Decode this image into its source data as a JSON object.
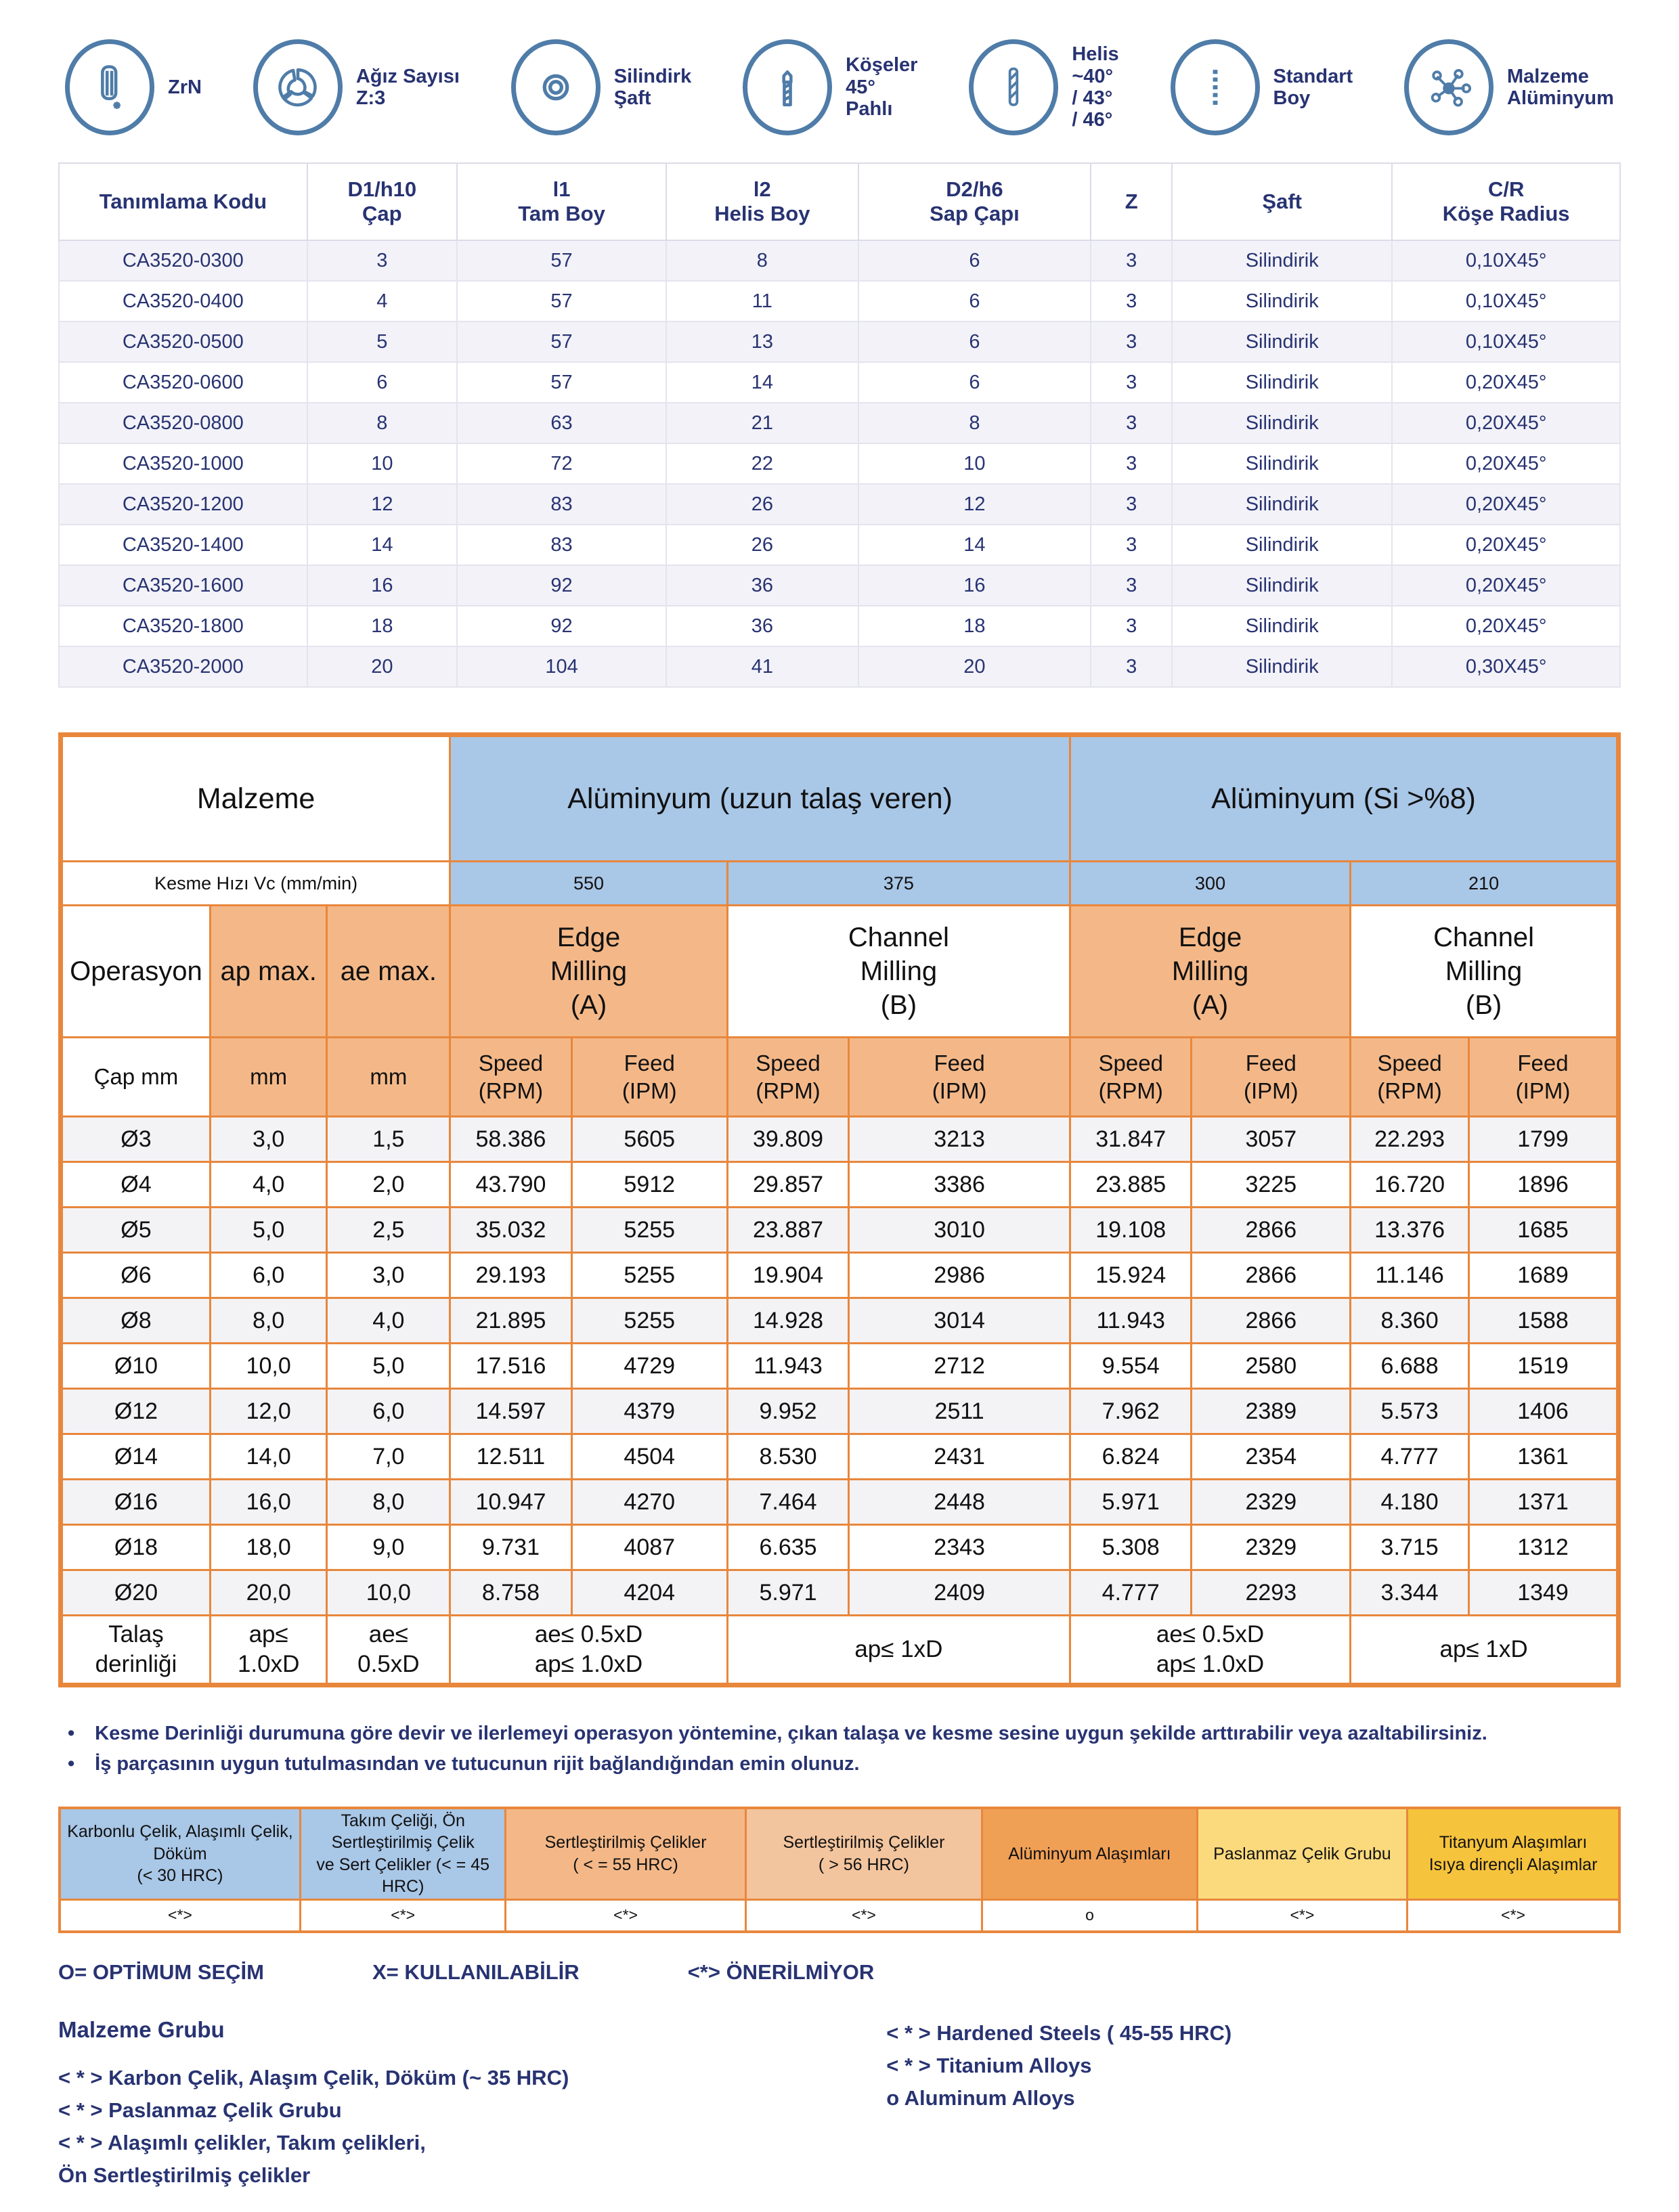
{
  "colors": {
    "navy": "#283372",
    "steel_blue": "#4f7ca8",
    "orange_border": "#e8873c",
    "orange_fill": "#f4b888",
    "blue_fill": "#a9c7e7",
    "alt_row": "#f2f2f8"
  },
  "icons": [
    {
      "label": "ZrN"
    },
    {
      "label": "Ağız Sayısı\nZ:3"
    },
    {
      "label": "Silindirk\nŞaft"
    },
    {
      "label": "Köşeler\n45°\nPahlı"
    },
    {
      "label": "Helis\n~40°\n/ 43°\n/ 46°"
    },
    {
      "label": "Standart\nBoy"
    },
    {
      "label": "Malzeme\nAlüminyum"
    }
  ],
  "spec_table": {
    "columns": [
      "Tanımlama Kodu",
      "D1/h10\nÇap",
      "l1\nTam Boy",
      "l2\nHelis Boy",
      "D2/h6\nSap Çapı",
      "Z",
      "Şaft",
      "C/R\nKöşe Radius"
    ],
    "rows": [
      [
        "CA3520-0300",
        "3",
        "57",
        "8",
        "6",
        "3",
        "Silindirik",
        "0,10X45°"
      ],
      [
        "CA3520-0400",
        "4",
        "57",
        "11",
        "6",
        "3",
        "Silindirik",
        "0,10X45°"
      ],
      [
        "CA3520-0500",
        "5",
        "57",
        "13",
        "6",
        "3",
        "Silindirik",
        "0,10X45°"
      ],
      [
        "CA3520-0600",
        "6",
        "57",
        "14",
        "6",
        "3",
        "Silindirik",
        "0,20X45°"
      ],
      [
        "CA3520-0800",
        "8",
        "63",
        "21",
        "8",
        "3",
        "Silindirik",
        "0,20X45°"
      ],
      [
        "CA3520-1000",
        "10",
        "72",
        "22",
        "10",
        "3",
        "Silindirik",
        "0,20X45°"
      ],
      [
        "CA3520-1200",
        "12",
        "83",
        "26",
        "12",
        "3",
        "Silindirik",
        "0,20X45°"
      ],
      [
        "CA3520-1400",
        "14",
        "83",
        "26",
        "14",
        "3",
        "Silindirik",
        "0,20X45°"
      ],
      [
        "CA3520-1600",
        "16",
        "92",
        "36",
        "16",
        "3",
        "Silindirik",
        "0,20X45°"
      ],
      [
        "CA3520-1800",
        "18",
        "92",
        "36",
        "18",
        "3",
        "Silindirik",
        "0,20X45°"
      ],
      [
        "CA3520-2000",
        "20",
        "104",
        "41",
        "20",
        "3",
        "Silindirik",
        "0,30X45°"
      ]
    ]
  },
  "cut_table": {
    "material_label": "Malzeme",
    "material_groups": [
      "Alüminyum (uzun talaş veren)",
      "Alüminyum (Si >%8)"
    ],
    "cutting_speed_label": "Kesme Hızı Vc (mm/min)",
    "cutting_speeds": [
      "550",
      "375",
      "300",
      "210"
    ],
    "operation_label": "Operasyon",
    "ap_label": "ap max.",
    "ae_label": "ae max.",
    "operations": [
      "Edge\nMilling\n(A)",
      "Channel\nMilling\n(B)",
      "Edge\nMilling\n(A)",
      "Channel\nMilling\n(B)"
    ],
    "dia_label": "Çap mm",
    "mm_label": "mm",
    "speed_label": "Speed\n(RPM)",
    "feed_label": "Feed\n(IPM)",
    "rows": [
      {
        "dia": "Ø3",
        "ap": "3,0",
        "ae": "1,5",
        "values": [
          "58.386",
          "5605",
          "39.809",
          "3213",
          "31.847",
          "3057",
          "22.293",
          "1799"
        ]
      },
      {
        "dia": "Ø4",
        "ap": "4,0",
        "ae": "2,0",
        "values": [
          "43.790",
          "5912",
          "29.857",
          "3386",
          "23.885",
          "3225",
          "16.720",
          "1896"
        ]
      },
      {
        "dia": "Ø5",
        "ap": "5,0",
        "ae": "2,5",
        "values": [
          "35.032",
          "5255",
          "23.887",
          "3010",
          "19.108",
          "2866",
          "13.376",
          "1685"
        ]
      },
      {
        "dia": "Ø6",
        "ap": "6,0",
        "ae": "3,0",
        "values": [
          "29.193",
          "5255",
          "19.904",
          "2986",
          "15.924",
          "2866",
          "11.146",
          "1689"
        ]
      },
      {
        "dia": "Ø8",
        "ap": "8,0",
        "ae": "4,0",
        "values": [
          "21.895",
          "5255",
          "14.928",
          "3014",
          "11.943",
          "2866",
          "8.360",
          "1588"
        ]
      },
      {
        "dia": "Ø10",
        "ap": "10,0",
        "ae": "5,0",
        "values": [
          "17.516",
          "4729",
          "11.943",
          "2712",
          "9.554",
          "2580",
          "6.688",
          "1519"
        ]
      },
      {
        "dia": "Ø12",
        "ap": "12,0",
        "ae": "6,0",
        "values": [
          "14.597",
          "4379",
          "9.952",
          "2511",
          "7.962",
          "2389",
          "5.573",
          "1406"
        ]
      },
      {
        "dia": "Ø14",
        "ap": "14,0",
        "ae": "7,0",
        "values": [
          "12.511",
          "4504",
          "8.530",
          "2431",
          "6.824",
          "2354",
          "4.777",
          "1361"
        ]
      },
      {
        "dia": "Ø16",
        "ap": "16,0",
        "ae": "8,0",
        "values": [
          "10.947",
          "4270",
          "7.464",
          "2448",
          "5.971",
          "2329",
          "4.180",
          "1371"
        ]
      },
      {
        "dia": "Ø18",
        "ap": "18,0",
        "ae": "9,0",
        "values": [
          "9.731",
          "4087",
          "6.635",
          "2343",
          "5.308",
          "2329",
          "3.715",
          "1312"
        ]
      },
      {
        "dia": "Ø20",
        "ap": "20,0",
        "ae": "10,0",
        "values": [
          "8.758",
          "4204",
          "5.971",
          "2409",
          "4.777",
          "2293",
          "3.344",
          "1349"
        ]
      }
    ],
    "depth_row": {
      "label": "Talaş\nderinliği",
      "ap": "ap≤\n1.0xD",
      "ae": "ae≤\n0.5xD",
      "spans": [
        "ae≤ 0.5xD\nap≤ 1.0xD",
        "ap≤ 1xD",
        "ae≤ 0.5xD\nap≤ 1.0xD",
        "ap≤ 1xD"
      ]
    }
  },
  "notes": [
    "Kesme Derinliği durumuna göre devir ve ilerlemeyi operasyon yöntemine, çıkan talaşa ve kesme sesine uygun şekilde arttırabilir veya azaltabilirsiniz.",
    "İş parçasının uygun tutulmasından ve tutucunun rijit bağlandığından emin olunuz."
  ],
  "material_strip": [
    {
      "label": "Karbonlu Çelik, Alaşımlı Çelik, Döküm\n(< 30 HRC)",
      "symbol": "<*>",
      "color": "#a9c7e7"
    },
    {
      "label": "Takım Çeliği, Ön\nSertleştirilmiş Çelik\nve Sert Çelikler (< = 45 HRC)",
      "symbol": "<*>",
      "color": "#a9c7e7"
    },
    {
      "label": "Sertleştirilmiş Çelikler\n( < = 55 HRC)",
      "symbol": "<*>",
      "color": "#f4b888"
    },
    {
      "label": "Sertleştirilmiş Çelikler\n( > 56 HRC)",
      "symbol": "<*>",
      "color": "#f3c59e"
    },
    {
      "label": "Alüminyum Alaşımları",
      "symbol": "o",
      "color": "#f0a055"
    },
    {
      "label": "Paslanmaz Çelik Grubu",
      "symbol": "<*>",
      "color": "#fbda7e"
    },
    {
      "label": "Titanyum Alaşımları\nIsıya dirençli Alaşımlar",
      "symbol": "<*>",
      "color": "#f6c33c"
    }
  ],
  "legend": {
    "optimum": "O= OPTİMUM SEÇİM",
    "usable": "X= KULLANILABİLİR",
    "not_recommended": "<*> ÖNERİLMİYOR"
  },
  "material_group": {
    "title": "Malzeme Grubu",
    "left_items": [
      "< * > Karbon Çelik, Alaşım Çelik, Döküm (~ 35 HRC)",
      "< * >  Paslanmaz Çelik Grubu",
      "< * > Alaşımlı çelikler, Takım çelikleri,",
      "Ön Sertleştirilmiş çelikler"
    ],
    "right_items": [
      "< * > Hardened Steels ( 45-55 HRC)",
      "< * > Titanium Alloys",
      "o Aluminum Alloys"
    ]
  }
}
